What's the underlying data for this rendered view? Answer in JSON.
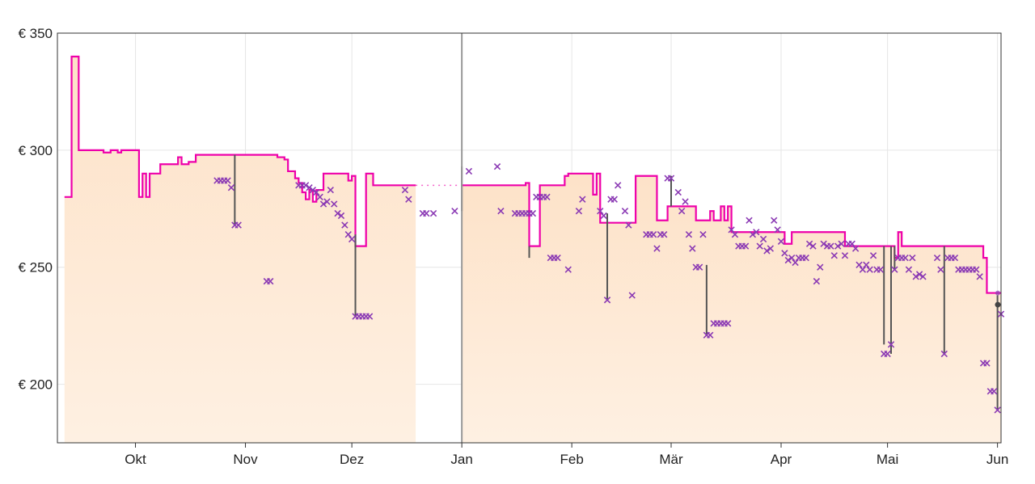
{
  "colors": {
    "amazon": "#ee00aa",
    "third_party": "#8b3ab4",
    "area_top": "#fde2c8",
    "area_bottom": "#fef0e2",
    "grid": "#e6e6e6",
    "axis": "#333333",
    "connector": "#555555"
  },
  "chart_data": {
    "type": "line",
    "y_axis": {
      "ticks": [
        200,
        250,
        300,
        350
      ],
      "tick_labels": [
        "€ 200",
        "€ 250",
        "€ 300",
        "€ 350"
      ],
      "ylim": [
        175,
        350
      ]
    },
    "x_axis": {
      "ticks": [
        20,
        51,
        81,
        112,
        143,
        171,
        202,
        232,
        263
      ],
      "tick_labels": [
        "Okt",
        "Nov",
        "Dez",
        "Jan",
        "Feb",
        "Mär",
        "Apr",
        "Mai",
        "Jun"
      ],
      "xlim": [
        -2,
        264
      ]
    },
    "today_marker": 112,
    "gap": [
      99,
      112
    ],
    "series": [
      {
        "name": "",
        "step": true,
        "points": [
          [
            0,
            280
          ],
          [
            2,
            340
          ],
          [
            4,
            300
          ],
          [
            10,
            300
          ],
          [
            11,
            299
          ],
          [
            13,
            300
          ],
          [
            15,
            299
          ],
          [
            16,
            300
          ],
          [
            21,
            300
          ],
          [
            21,
            280
          ],
          [
            22,
            290
          ],
          [
            23,
            280
          ],
          [
            24,
            290
          ],
          [
            25,
            290
          ],
          [
            27,
            294
          ],
          [
            31,
            294
          ],
          [
            32,
            297
          ],
          [
            33,
            294
          ],
          [
            35,
            295
          ],
          [
            37,
            298
          ],
          [
            44,
            298
          ],
          [
            60,
            297
          ],
          [
            62,
            296
          ],
          [
            63,
            291
          ],
          [
            64,
            291
          ],
          [
            65,
            288
          ],
          [
            66,
            286
          ],
          [
            67,
            282
          ],
          [
            68,
            279
          ],
          [
            69,
            283
          ],
          [
            70,
            278
          ],
          [
            71,
            283
          ],
          [
            73,
            290
          ],
          [
            79,
            290
          ],
          [
            80,
            287
          ],
          [
            81,
            289
          ],
          [
            82,
            259
          ],
          [
            84,
            259
          ],
          [
            85,
            290
          ],
          [
            87,
            285
          ],
          [
            99,
            285
          ]
        ]
      },
      {
        "name": "",
        "step": true,
        "points": [
          [
            112,
            285
          ],
          [
            129,
            285
          ],
          [
            130,
            286
          ],
          [
            131,
            259
          ],
          [
            133,
            259
          ],
          [
            134,
            285
          ],
          [
            140,
            285
          ],
          [
            141,
            289
          ],
          [
            142,
            290
          ],
          [
            148,
            290
          ],
          [
            149,
            281
          ],
          [
            150,
            290
          ],
          [
            151,
            269
          ],
          [
            160,
            269
          ],
          [
            161,
            289
          ],
          [
            166,
            289
          ],
          [
            167,
            270
          ],
          [
            169,
            270
          ],
          [
            170,
            276
          ],
          [
            177,
            276
          ],
          [
            178,
            270
          ],
          [
            181,
            270
          ],
          [
            182,
            274
          ],
          [
            183,
            270
          ],
          [
            184,
            270
          ],
          [
            185,
            276
          ],
          [
            186,
            270
          ],
          [
            187,
            276
          ],
          [
            188,
            265
          ],
          [
            202,
            265
          ],
          [
            203,
            260
          ],
          [
            205,
            265
          ],
          [
            219,
            265
          ],
          [
            220,
            259
          ],
          [
            233,
            259
          ],
          [
            234,
            254
          ],
          [
            235,
            265
          ],
          [
            236,
            259
          ],
          [
            258,
            259
          ],
          [
            259,
            254
          ],
          [
            260,
            239
          ],
          [
            264,
            239
          ]
        ]
      }
    ],
    "scatter": [
      [
        43,
        287
      ],
      [
        44,
        287
      ],
      [
        45,
        287
      ],
      [
        46,
        287
      ],
      [
        47,
        284
      ],
      [
        48,
        268
      ],
      [
        49,
        268
      ],
      [
        57,
        244
      ],
      [
        58,
        244
      ],
      [
        66,
        285
      ],
      [
        67,
        285
      ],
      [
        68,
        285
      ],
      [
        69,
        284
      ],
      [
        70,
        283
      ],
      [
        71,
        282
      ],
      [
        72,
        280
      ],
      [
        73,
        277
      ],
      [
        74,
        278
      ],
      [
        75,
        283
      ],
      [
        76,
        277
      ],
      [
        77,
        273
      ],
      [
        78,
        272
      ],
      [
        79,
        268
      ],
      [
        80,
        264
      ],
      [
        81,
        262
      ],
      [
        82,
        229
      ],
      [
        83,
        229
      ],
      [
        84,
        229
      ],
      [
        85,
        229
      ],
      [
        86,
        229
      ],
      [
        96,
        283
      ],
      [
        97,
        279
      ],
      [
        101,
        273
      ],
      [
        102,
        273
      ],
      [
        104,
        273
      ],
      [
        110,
        274
      ],
      [
        114,
        291
      ],
      [
        122,
        293
      ],
      [
        123,
        274
      ],
      [
        127,
        273
      ],
      [
        128,
        273
      ],
      [
        129,
        273
      ],
      [
        130,
        273
      ],
      [
        131,
        273
      ],
      [
        132,
        273
      ],
      [
        133,
        280
      ],
      [
        134,
        280
      ],
      [
        135,
        280
      ],
      [
        136,
        280
      ],
      [
        137,
        254
      ],
      [
        138,
        254
      ],
      [
        139,
        254
      ],
      [
        142,
        249
      ],
      [
        145,
        274
      ],
      [
        146,
        279
      ],
      [
        151,
        274
      ],
      [
        152,
        272
      ],
      [
        153,
        236
      ],
      [
        154,
        279
      ],
      [
        155,
        279
      ],
      [
        156,
        285
      ],
      [
        158,
        274
      ],
      [
        159,
        268
      ],
      [
        160,
        238
      ],
      [
        164,
        264
      ],
      [
        165,
        264
      ],
      [
        166,
        264
      ],
      [
        167,
        258
      ],
      [
        168,
        264
      ],
      [
        169,
        264
      ],
      [
        170,
        288
      ],
      [
        171,
        288
      ],
      [
        173,
        282
      ],
      [
        174,
        274
      ],
      [
        175,
        278
      ],
      [
        176,
        264
      ],
      [
        177,
        258
      ],
      [
        178,
        250
      ],
      [
        179,
        250
      ],
      [
        180,
        264
      ],
      [
        181,
        221
      ],
      [
        182,
        221
      ],
      [
        183,
        226
      ],
      [
        184,
        226
      ],
      [
        185,
        226
      ],
      [
        186,
        226
      ],
      [
        187,
        226
      ],
      [
        188,
        266
      ],
      [
        189,
        264
      ],
      [
        190,
        259
      ],
      [
        191,
        259
      ],
      [
        192,
        259
      ],
      [
        193,
        270
      ],
      [
        194,
        264
      ],
      [
        195,
        265
      ],
      [
        196,
        259
      ],
      [
        197,
        262
      ],
      [
        198,
        257
      ],
      [
        199,
        258
      ],
      [
        200,
        270
      ],
      [
        201,
        266
      ],
      [
        202,
        261
      ],
      [
        203,
        256
      ],
      [
        204,
        253
      ],
      [
        205,
        254
      ],
      [
        206,
        252
      ],
      [
        207,
        254
      ],
      [
        208,
        254
      ],
      [
        209,
        254
      ],
      [
        210,
        260
      ],
      [
        211,
        259
      ],
      [
        212,
        244
      ],
      [
        213,
        250
      ],
      [
        214,
        260
      ],
      [
        215,
        259
      ],
      [
        216,
        259
      ],
      [
        217,
        255
      ],
      [
        218,
        259
      ],
      [
        219,
        260
      ],
      [
        220,
        255
      ],
      [
        221,
        260
      ],
      [
        222,
        260
      ],
      [
        223,
        258
      ],
      [
        224,
        251
      ],
      [
        225,
        249
      ],
      [
        226,
        251
      ],
      [
        227,
        249
      ],
      [
        228,
        255
      ],
      [
        229,
        249
      ],
      [
        230,
        249
      ],
      [
        231,
        213
      ],
      [
        232,
        213
      ],
      [
        233,
        217
      ],
      [
        234,
        249
      ],
      [
        235,
        254
      ],
      [
        236,
        254
      ],
      [
        237,
        254
      ],
      [
        238,
        249
      ],
      [
        239,
        254
      ],
      [
        240,
        246
      ],
      [
        241,
        247
      ],
      [
        242,
        246
      ],
      [
        246,
        254
      ],
      [
        247,
        249
      ],
      [
        248,
        213
      ],
      [
        249,
        254
      ],
      [
        250,
        254
      ],
      [
        251,
        254
      ],
      [
        252,
        249
      ],
      [
        253,
        249
      ],
      [
        254,
        249
      ],
      [
        255,
        249
      ],
      [
        256,
        249
      ],
      [
        257,
        249
      ],
      [
        258,
        246
      ],
      [
        259,
        209
      ],
      [
        260,
        209
      ],
      [
        261,
        197
      ],
      [
        262,
        197
      ],
      [
        263,
        189
      ],
      [
        264,
        230
      ]
    ],
    "connectors": [
      [
        48,
        298,
        268
      ],
      [
        82,
        264,
        229
      ],
      [
        99,
        273,
        273
      ],
      [
        112,
        293,
        274
      ],
      [
        131,
        259,
        254
      ],
      [
        153,
        273,
        236
      ],
      [
        171,
        289,
        276
      ],
      [
        181,
        251,
        221
      ],
      [
        231,
        259,
        217
      ],
      [
        233,
        259,
        213
      ],
      [
        234,
        259,
        249
      ],
      [
        248,
        259,
        213
      ],
      [
        263,
        238,
        189
      ]
    ],
    "endpoints": [
      [
        264,
        239
      ],
      [
        264,
        234
      ]
    ]
  }
}
